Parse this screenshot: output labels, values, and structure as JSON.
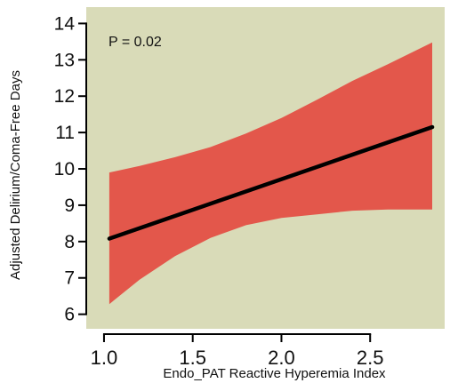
{
  "chart_data": {
    "type": "line",
    "title": "",
    "xlabel": "Endo_PAT Reactive Hyperemia Index",
    "ylabel": "Adjusted Delirium/Coma-Free Days",
    "annotation": "P = 0.02",
    "xlim": [
      0.9,
      2.92
    ],
    "ylim": [
      5.6,
      14.45
    ],
    "x_ticks": [
      1.0,
      1.5,
      2.0,
      2.5
    ],
    "x_tick_labels": [
      "1.0",
      "1.5",
      "2.0",
      "2.5"
    ],
    "y_ticks": [
      6,
      7,
      8,
      9,
      10,
      11,
      12,
      13,
      14
    ],
    "y_tick_labels": [
      "6",
      "7",
      "8",
      "9",
      "10",
      "11",
      "12",
      "13",
      "14"
    ],
    "grid": false,
    "colors": {
      "plot_background": "#d9dbb8",
      "confidence_band": "#e3574b",
      "line": "#000000",
      "axis": "#000000"
    },
    "series": [
      {
        "x": [
          1.03,
          2.85
        ],
        "y": [
          8.08,
          11.15
        ]
      }
    ],
    "confidence_band": {
      "x": [
        1.03,
        1.2,
        1.4,
        1.6,
        1.8,
        2.0,
        2.2,
        2.4,
        2.6,
        2.85
      ],
      "upper": [
        9.9,
        10.08,
        10.32,
        10.6,
        10.97,
        11.4,
        11.9,
        12.42,
        12.88,
        13.48
      ],
      "lower": [
        6.28,
        6.95,
        7.6,
        8.1,
        8.45,
        8.65,
        8.75,
        8.85,
        8.88,
        8.88
      ]
    }
  }
}
